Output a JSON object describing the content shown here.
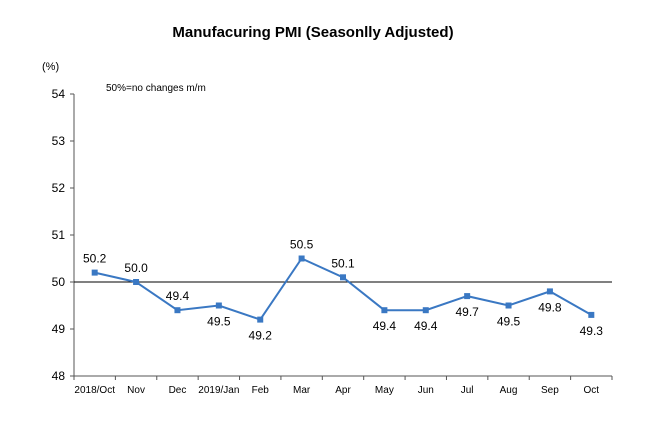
{
  "chart_data": {
    "type": "line",
    "title": "Manufacuring PMI (Seasonlly Adjusted)",
    "unit_label": "(%)",
    "annotation": "50%=no changes  m/m",
    "categories": [
      "2018/Oct",
      "Nov",
      "Dec",
      "2019/Jan",
      "Feb",
      "Mar",
      "Apr",
      "May",
      "Jun",
      "Jul",
      "Aug",
      "Sep",
      "Oct"
    ],
    "series": [
      {
        "values": [
          50.2,
          50.0,
          49.4,
          49.5,
          49.2,
          50.5,
          50.1,
          49.4,
          49.4,
          49.7,
          49.5,
          49.8,
          49.3
        ],
        "labels": [
          "50.2",
          "50.0",
          "49.4",
          "49.5",
          "49.2",
          "50.5",
          "50.1",
          "49.4",
          "49.4",
          "49.7",
          "49.5",
          "49.8",
          "49.3"
        ],
        "label_position": [
          "above",
          "above",
          "above",
          "below",
          "below",
          "above",
          "above",
          "below",
          "below",
          "below",
          "below",
          "below",
          "below"
        ],
        "color": "#3a78c3",
        "marker": "square"
      }
    ],
    "ylim": [
      48,
      54
    ],
    "yticks": [
      "48",
      "49",
      "50",
      "51",
      "52",
      "53",
      "54"
    ],
    "reference_line": 50,
    "grid": false,
    "legend": "none"
  }
}
